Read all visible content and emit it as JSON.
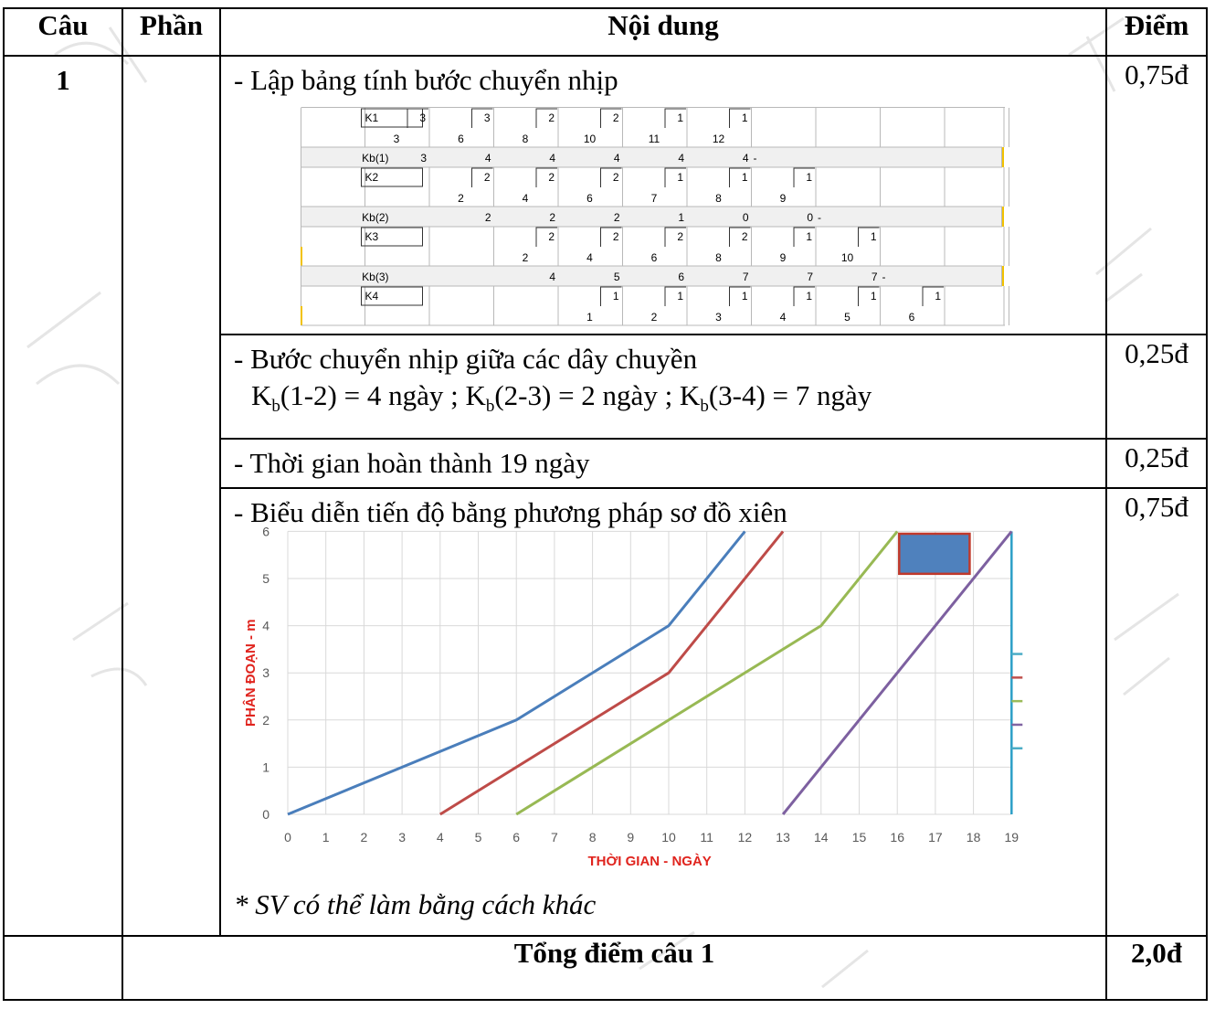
{
  "header": {
    "col1": "Câu",
    "col2": "Phần",
    "col3": "Nội dung",
    "col4": "Điểm"
  },
  "question": "1",
  "row_a": {
    "text": "- Lập bảng tính bước chuyển nhịp",
    "score": "0,75đ"
  },
  "calc_table": {
    "rows": [
      {
        "type": "K",
        "label": "K1",
        "upper": [
          "3",
          "3",
          "2",
          "2",
          "1",
          "1"
        ],
        "lower": [
          "3",
          "6",
          "8",
          "10",
          "11",
          "12"
        ],
        "start": 2
      },
      {
        "type": "Kb",
        "label": "Kb(1)",
        "values": [
          "3",
          "4",
          "4",
          "4",
          "4",
          "4"
        ],
        "start": 2,
        "tail": "-"
      },
      {
        "type": "K",
        "label": "K2",
        "upper": [
          "2",
          "2",
          "2",
          "1",
          "1",
          "1"
        ],
        "lower": [
          "2",
          "4",
          "6",
          "7",
          "8",
          "9"
        ],
        "start": 3
      },
      {
        "type": "Kb",
        "label": "Kb(2)",
        "values": [
          "2",
          "2",
          "2",
          "1",
          "0",
          "0"
        ],
        "start": 3,
        "tail": "-"
      },
      {
        "type": "K",
        "label": "K3",
        "upper": [
          "2",
          "2",
          "2",
          "2",
          "1",
          "1"
        ],
        "lower": [
          "2",
          "4",
          "6",
          "8",
          "9",
          "10"
        ],
        "start": 4
      },
      {
        "type": "Kb",
        "label": "Kb(3)",
        "values": [
          "4",
          "5",
          "6",
          "7",
          "7",
          "7"
        ],
        "start": 4,
        "tail": "-"
      },
      {
        "type": "K",
        "label": "K4",
        "upper": [
          "1",
          "1",
          "1",
          "1",
          "1",
          "1"
        ],
        "lower": [
          "1",
          "2",
          "3",
          "4",
          "5",
          "6"
        ],
        "start": 5
      }
    ]
  },
  "row_b": {
    "line1": "- Bước chuyển nhịp giữa các dây chuyền",
    "line2_parts": [
      "K",
      "b",
      "(1-2) = 4 ngày ; K",
      "b",
      "(2-3) = 2 ngày ; K",
      "b",
      "(3-4) = 7 ngày"
    ],
    "score": "0,25đ"
  },
  "row_c": {
    "text": "- Thời gian hoàn thành 19 ngày",
    "score": "0,25đ"
  },
  "row_d": {
    "text": "- Biểu diễn tiến độ bằng phương pháp sơ đồ xiên",
    "note": "* SV có thể làm bằng cách khác",
    "score": "0,75đ"
  },
  "chart_data": {
    "type": "line",
    "xlabel": "THỜI GIAN - NGÀY",
    "ylabel": "PHÂN ĐOẠN - m",
    "xlim": [
      0,
      19
    ],
    "ylim": [
      0,
      6
    ],
    "x_ticks": [
      "0",
      "1",
      "2",
      "3",
      "4",
      "5",
      "6",
      "7",
      "8",
      "9",
      "10",
      "11",
      "12",
      "13",
      "14",
      "15",
      "16",
      "17",
      "18",
      "19"
    ],
    "y_ticks": [
      "0",
      "1",
      "2",
      "3",
      "4",
      "5",
      "6"
    ],
    "grid": true,
    "series": [
      {
        "color": "#4a7ebb",
        "points": [
          [
            0,
            0
          ],
          [
            6,
            2
          ],
          [
            10,
            4
          ],
          [
            12,
            6
          ]
        ]
      },
      {
        "color": "#be4b48",
        "points": [
          [
            4,
            0
          ],
          [
            10,
            3
          ],
          [
            13,
            6
          ]
        ]
      },
      {
        "color": "#98b954",
        "points": [
          [
            6,
            0
          ],
          [
            14,
            4
          ],
          [
            16,
            6
          ]
        ]
      },
      {
        "color": "#7d60a0",
        "points": [
          [
            13,
            0
          ],
          [
            19,
            6
          ]
        ]
      }
    ],
    "vertical_line": {
      "x": 19,
      "color": "#2c9fc7"
    },
    "legend_marks": [
      {
        "color": "#4bacc6",
        "y": 3.4
      },
      {
        "color": "#c0504d",
        "y": 2.9
      },
      {
        "color": "#9bbb59",
        "y": 2.4
      },
      {
        "color": "#8064a2",
        "y": 1.9
      },
      {
        "color": "#4bacc6",
        "y": 1.4
      }
    ],
    "box": {
      "fill": "#4f81bd",
      "stroke": "#c0392b"
    }
  },
  "total": {
    "label": "Tổng điểm câu 1",
    "score": "2,0đ"
  }
}
